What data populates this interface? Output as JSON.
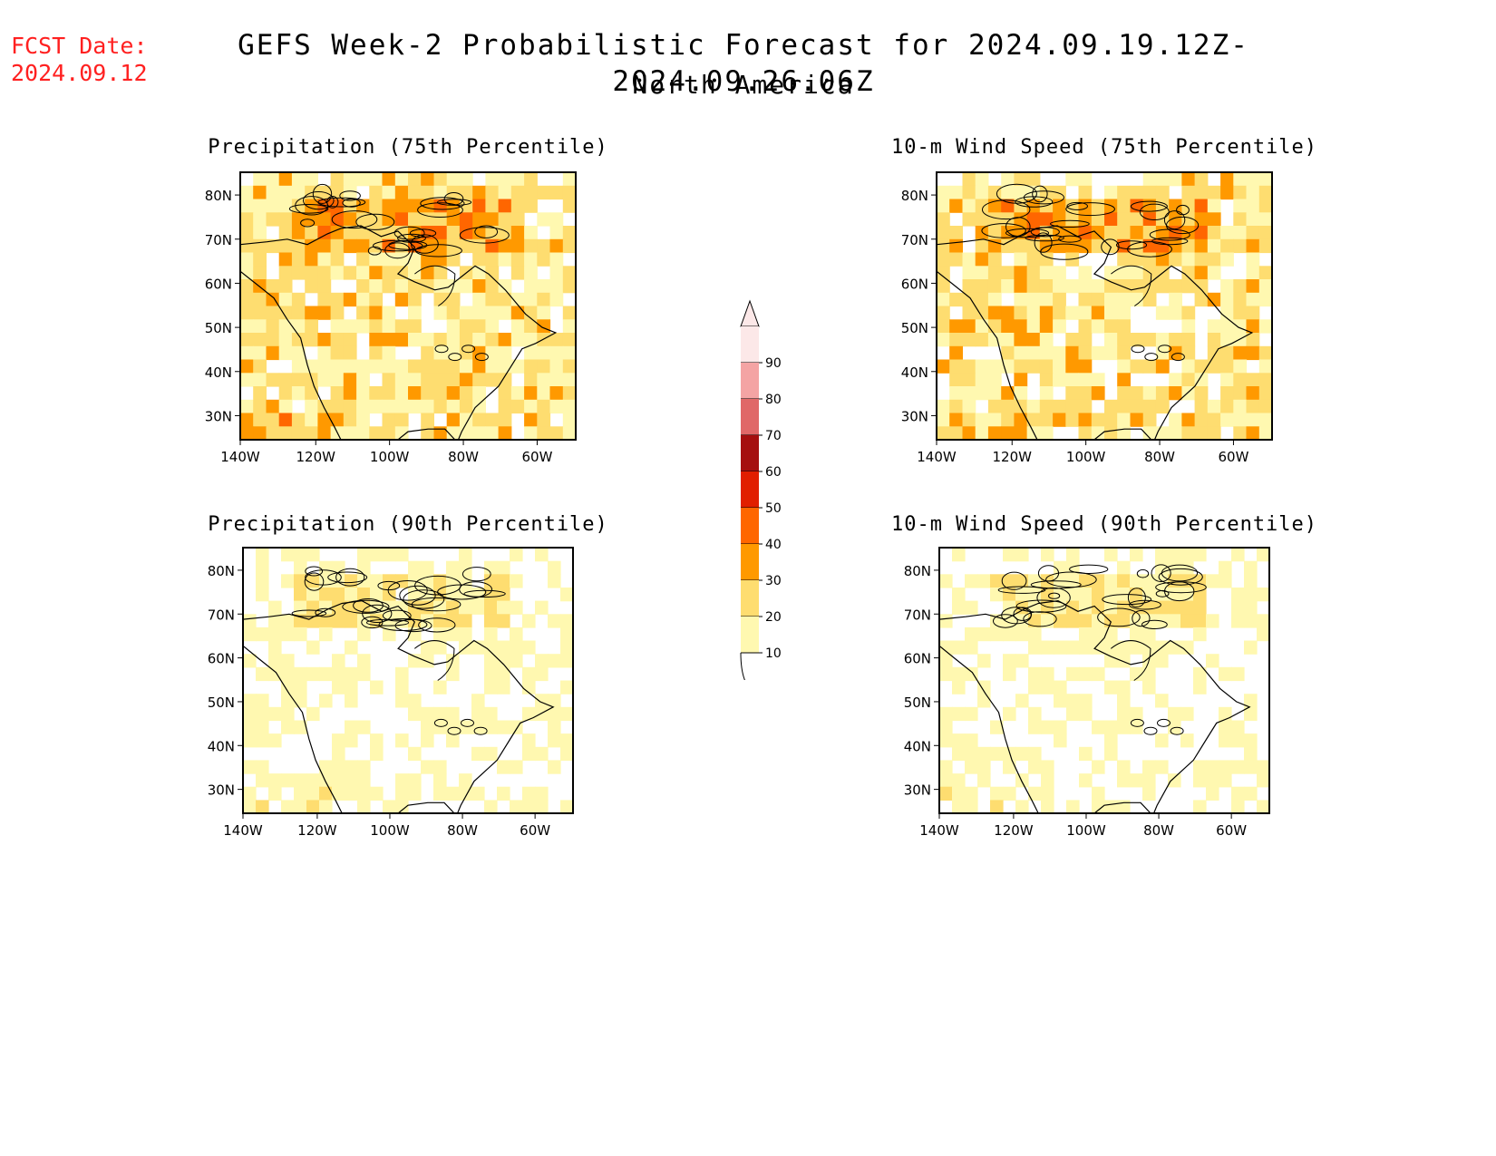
{
  "header": {
    "fcst_label": "FCST Date:",
    "fcst_date": "2024.09.12",
    "title": "GEFS Week-2 Probabilistic Forecast for 2024.09.19.12Z-2024.09.26.06Z",
    "subtitle": "North America"
  },
  "axes": {
    "lat_labels": [
      "80N",
      "70N",
      "60N",
      "50N",
      "40N",
      "30N"
    ],
    "lon_labels": [
      "140W",
      "120W",
      "100W",
      "80W",
      "60W"
    ]
  },
  "panels": [
    {
      "title": "Precipitation (75th Percentile)",
      "level": "high"
    },
    {
      "title": "10-m Wind Speed (75th Percentile)",
      "level": "high"
    },
    {
      "title": "Precipitation (90th Percentile)",
      "level": "low"
    },
    {
      "title": "10-m Wind Speed (90th Percentile)",
      "level": "low"
    }
  ],
  "colorbar": {
    "levels": [
      "90",
      "80",
      "70",
      "60",
      "50",
      "40",
      "30",
      "20",
      "10"
    ],
    "colors": [
      "#fce8e8",
      "#f4a4a4",
      "#e06868",
      "#a50f0f",
      "#e11e00",
      "#ff6600",
      "#ff9900",
      "#fedd70",
      "#fff8b0"
    ]
  }
}
